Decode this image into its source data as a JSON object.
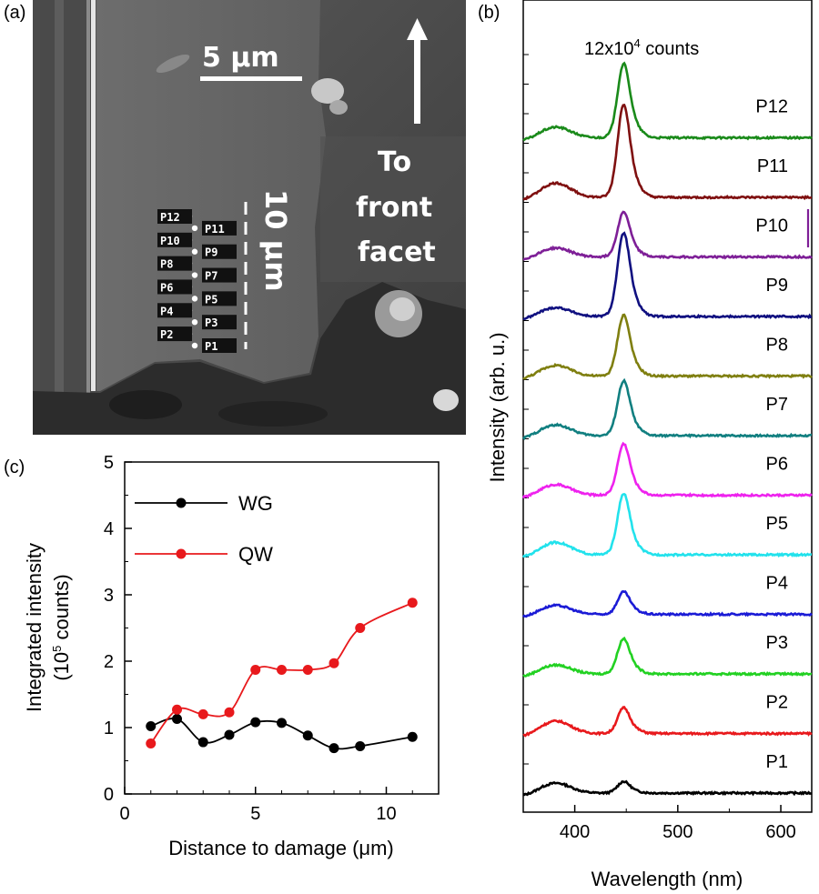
{
  "panel_a": {
    "letter": "(a)",
    "scale_bar_label": "5  μm",
    "dashed_label": "10 μm",
    "arrow_text": [
      "To",
      "front",
      "facet"
    ],
    "point_labels": [
      "P12",
      "P11",
      "P10",
      "P9",
      "P8",
      "P7",
      "P6",
      "P5",
      "P4",
      "P3",
      "P2",
      "P1"
    ]
  },
  "chart_data": [
    {
      "panel": "(b)",
      "type": "line",
      "annotation": "12x10⁴ counts",
      "annotation_base": "12x10",
      "annotation_exp": "4",
      "annotation_suffix": " counts",
      "xlabel": "Wavelength (nm)",
      "ylabel": "Intensity (arb. u.)",
      "xlim": [
        350,
        630
      ],
      "xticks": [
        400,
        500,
        600
      ],
      "series": [
        {
          "name": "P1",
          "color": "#000000",
          "peak": 0.18,
          "bump": 0.28
        },
        {
          "name": "P2",
          "color": "#e8191c",
          "peak": 0.4,
          "bump": 0.35
        },
        {
          "name": "P3",
          "color": "#22d122",
          "peak": 0.55,
          "bump": 0.25
        },
        {
          "name": "P4",
          "color": "#1b1bd6",
          "peak": 0.35,
          "bump": 0.25
        },
        {
          "name": "P5",
          "color": "#22e2ec",
          "peak": 0.95,
          "bump": 0.35
        },
        {
          "name": "P6",
          "color": "#ee22ee",
          "peak": 0.8,
          "bump": 0.3
        },
        {
          "name": "P7",
          "color": "#117f80",
          "peak": 0.85,
          "bump": 0.3
        },
        {
          "name": "P8",
          "color": "#7f7f10",
          "peak": 0.95,
          "bump": 0.3
        },
        {
          "name": "P9",
          "color": "#101080",
          "peak": 1.3,
          "bump": 0.25
        },
        {
          "name": "P10",
          "color": "#7e1f97",
          "peak": 0.7,
          "bump": 0.25
        },
        {
          "name": "P11",
          "color": "#7f1010",
          "peak": 1.45,
          "bump": 0.4
        },
        {
          "name": "P12",
          "color": "#1a8a1a",
          "peak": 1.15,
          "bump": 0.3
        }
      ]
    },
    {
      "panel": "(c)",
      "type": "line",
      "xlabel": "Distance to damage (μm)",
      "ylabel_line1": "Integrated intensity",
      "ylabel_line2_base": "(10",
      "ylabel_line2_exp": "5",
      "ylabel_line2_suffix": " counts)",
      "xlim": [
        0,
        12
      ],
      "ylim": [
        0,
        5
      ],
      "xticks": [
        0,
        5,
        10
      ],
      "yticks": [
        0,
        1,
        2,
        3,
        4,
        5
      ],
      "legend_position": "top-left",
      "series": [
        {
          "name": "WG",
          "color": "#000000",
          "x": [
            1,
            2,
            3,
            4,
            5,
            6,
            7,
            8,
            9,
            11
          ],
          "y": [
            1.02,
            1.13,
            0.78,
            0.89,
            1.08,
            1.07,
            0.88,
            0.69,
            0.72,
            0.86
          ]
        },
        {
          "name": "QW",
          "color": "#e8191c",
          "x": [
            1,
            2,
            3,
            4,
            5,
            6,
            7,
            8,
            9,
            11
          ],
          "y": [
            0.76,
            1.27,
            1.2,
            1.23,
            1.87,
            1.87,
            1.87,
            1.97,
            2.5,
            2.88
          ]
        }
      ]
    }
  ]
}
